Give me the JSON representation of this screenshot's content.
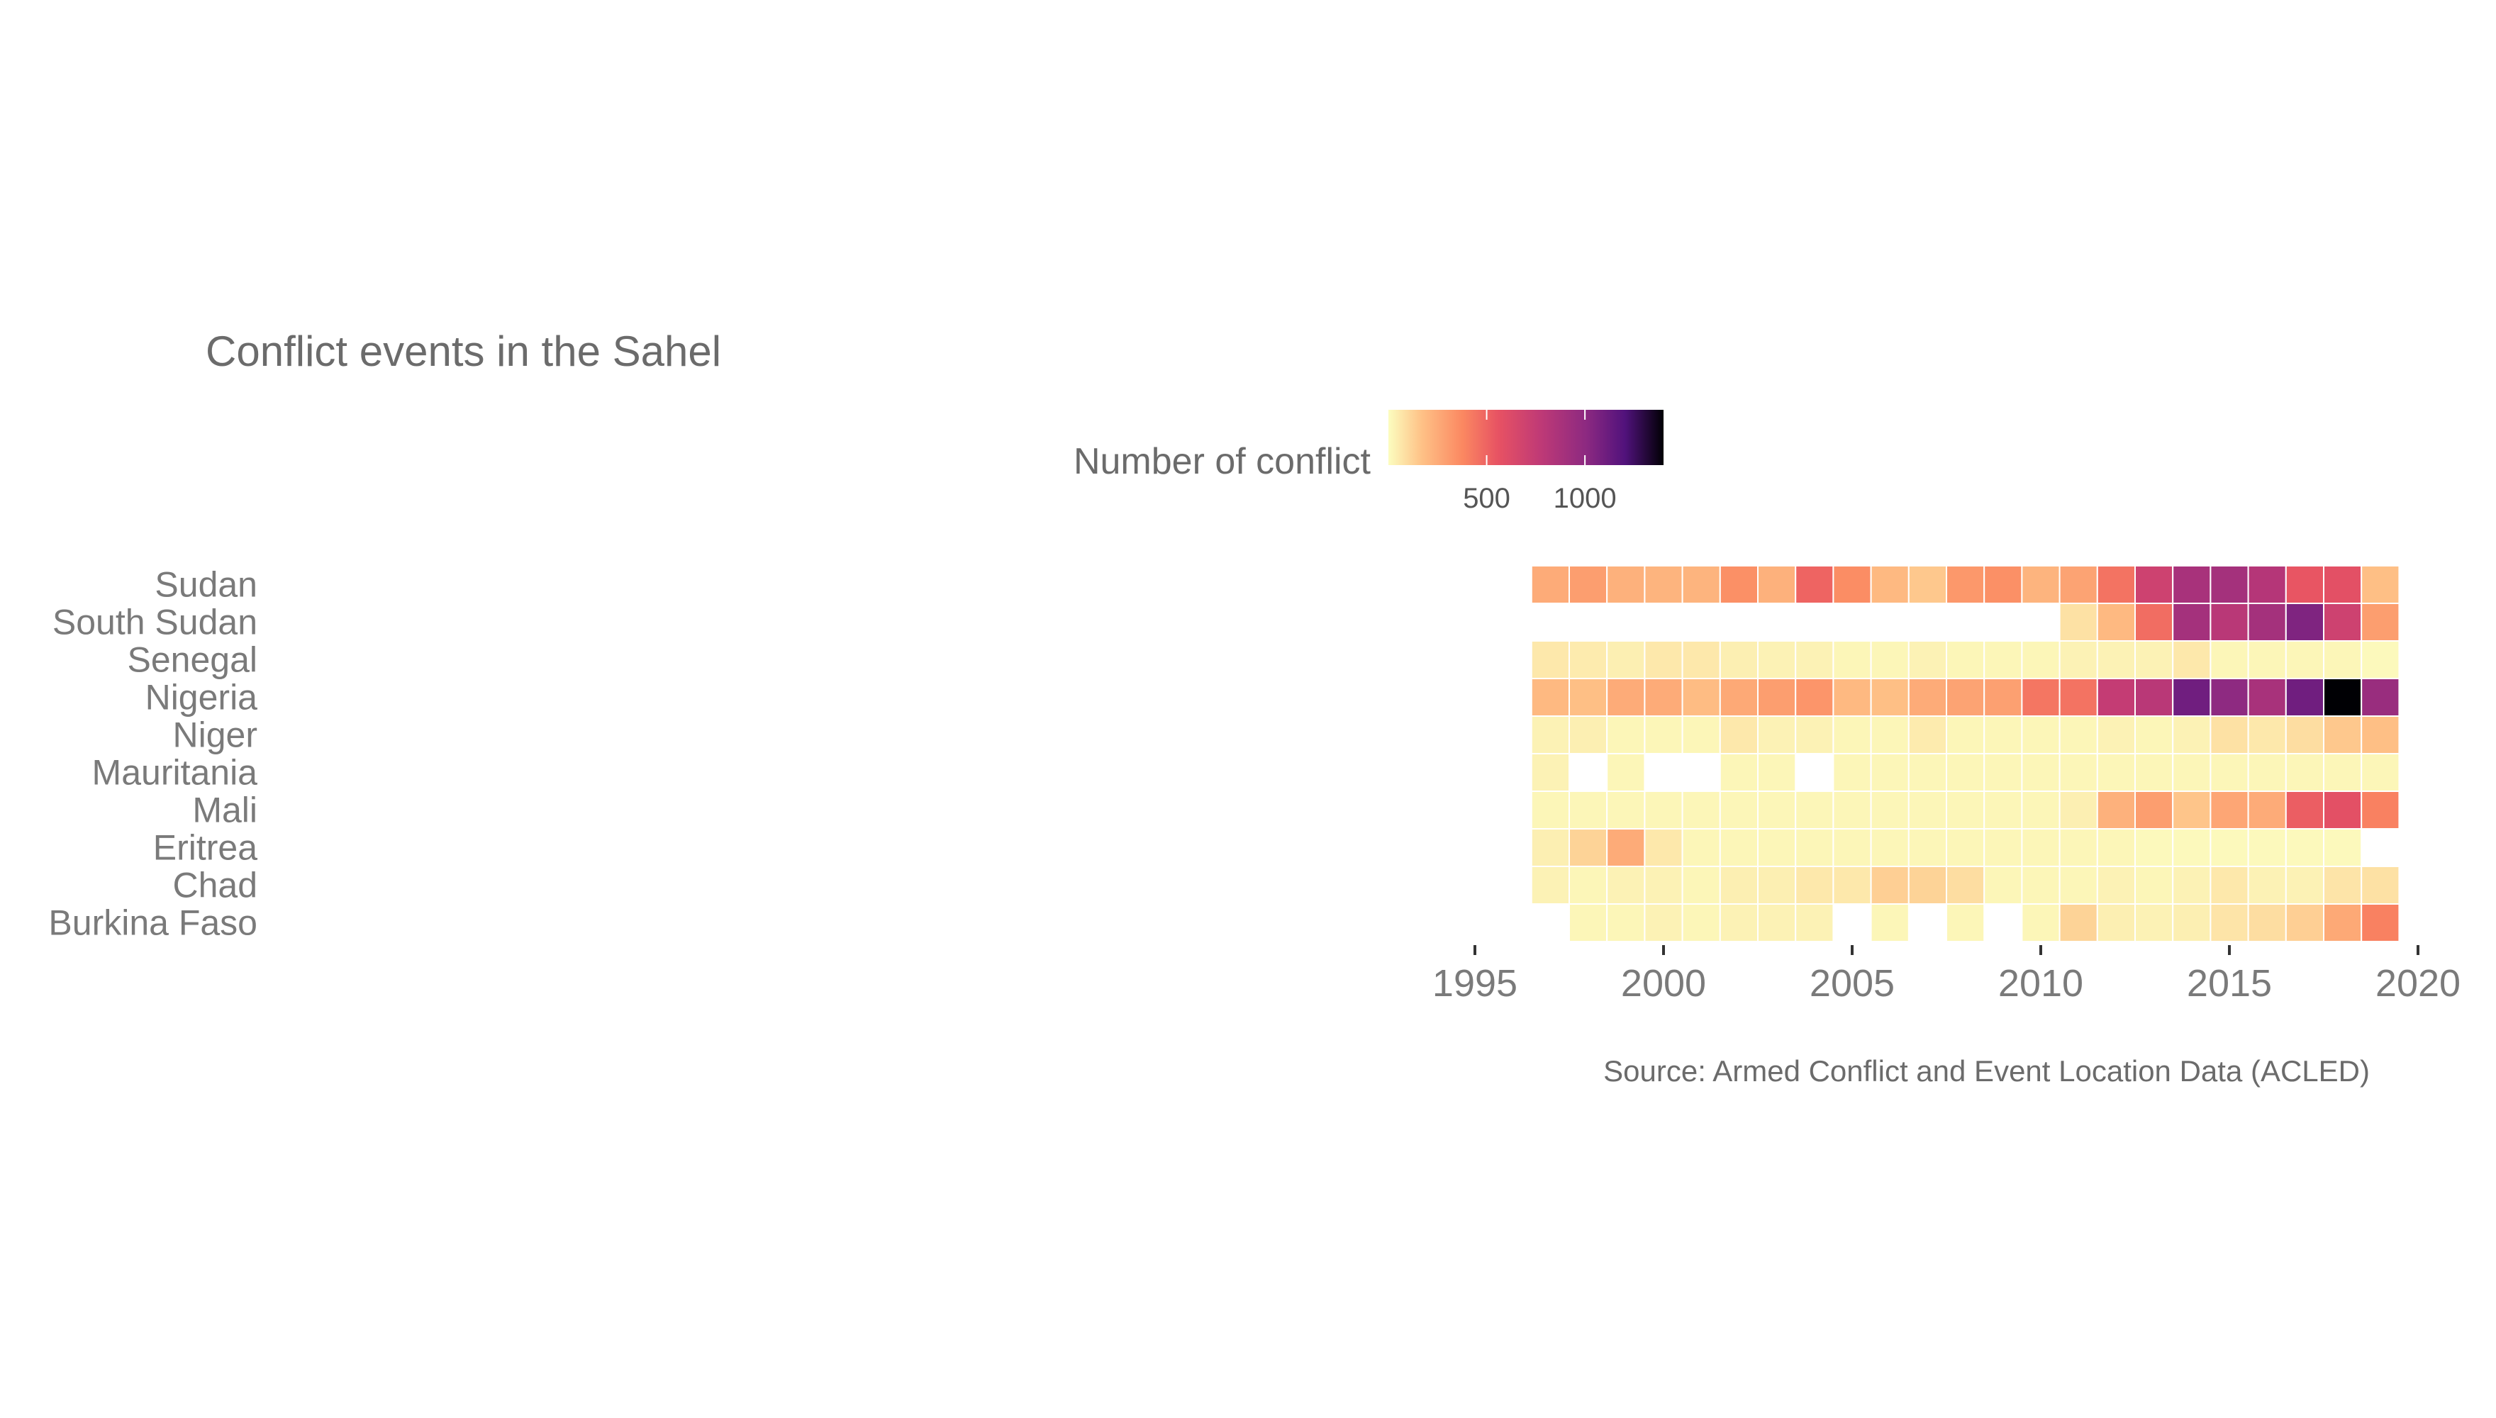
{
  "chart_data": {
    "type": "heatmap",
    "title": "Conflict events in the Sahel",
    "caption": "Source: Armed Conflict and Event Location Data (ACLED)",
    "legend": {
      "title": "Number of conflict",
      "ticks": [
        500,
        1000
      ],
      "min": 0,
      "max": 1400,
      "placement": "top"
    },
    "x_ticks": [
      1995,
      2000,
      2005,
      2010,
      2015,
      2020
    ],
    "xlim": [
      1995,
      2020
    ],
    "years": [
      1997,
      1998,
      1999,
      2000,
      2001,
      2002,
      2003,
      2004,
      2005,
      2006,
      2007,
      2008,
      2009,
      2010,
      2011,
      2012,
      2013,
      2014,
      2015,
      2016,
      2017,
      2018,
      2019
    ],
    "rows": [
      {
        "country": "Sudan",
        "values": [
          250,
          300,
          230,
          220,
          220,
          350,
          230,
          500,
          360,
          200,
          150,
          320,
          350,
          220,
          280,
          450,
          700,
          880,
          900,
          820,
          550,
          580,
          180
        ]
      },
      {
        "country": "South Sudan",
        "values": [
          null,
          null,
          null,
          null,
          null,
          null,
          null,
          null,
          null,
          null,
          null,
          null,
          null,
          null,
          80,
          200,
          470,
          900,
          800,
          900,
          1050,
          700,
          300
        ]
      },
      {
        "country": "Senegal",
        "values": [
          60,
          50,
          40,
          60,
          60,
          40,
          30,
          30,
          20,
          20,
          30,
          20,
          20,
          20,
          30,
          30,
          30,
          60,
          20,
          20,
          20,
          20,
          10
        ]
      },
      {
        "country": "Nigeria",
        "values": [
          200,
          180,
          250,
          250,
          190,
          260,
          300,
          330,
          200,
          180,
          250,
          280,
          290,
          440,
          450,
          750,
          800,
          1100,
          1000,
          880,
          1100,
          1400,
          950
        ]
      },
      {
        "country": "Niger",
        "values": [
          30,
          40,
          20,
          20,
          20,
          60,
          30,
          30,
          20,
          20,
          50,
          20,
          20,
          20,
          20,
          30,
          20,
          30,
          80,
          60,
          90,
          150,
          180
        ]
      },
      {
        "country": "Mauritania",
        "values": [
          30,
          null,
          20,
          null,
          null,
          20,
          20,
          null,
          20,
          20,
          20,
          20,
          20,
          20,
          20,
          20,
          20,
          20,
          20,
          20,
          20,
          20,
          20
        ]
      },
      {
        "country": "Mali",
        "values": [
          20,
          20,
          20,
          20,
          20,
          20,
          20,
          20,
          20,
          20,
          20,
          20,
          20,
          20,
          40,
          230,
          300,
          160,
          270,
          250,
          520,
          580,
          400
        ]
      },
      {
        "country": "Eritrea",
        "values": [
          40,
          120,
          250,
          60,
          20,
          20,
          20,
          20,
          20,
          20,
          20,
          20,
          20,
          20,
          20,
          20,
          10,
          10,
          10,
          10,
          10,
          10,
          null
        ]
      },
      {
        "country": "Chad",
        "values": [
          30,
          20,
          30,
          30,
          20,
          40,
          40,
          60,
          60,
          130,
          120,
          90,
          20,
          20,
          20,
          30,
          20,
          30,
          60,
          30,
          30,
          70,
          80
        ]
      },
      {
        "country": "Burkina Faso",
        "values": [
          null,
          20,
          20,
          30,
          20,
          30,
          30,
          30,
          null,
          20,
          null,
          20,
          null,
          20,
          120,
          40,
          30,
          40,
          70,
          90,
          130,
          260,
          400
        ]
      }
    ]
  }
}
